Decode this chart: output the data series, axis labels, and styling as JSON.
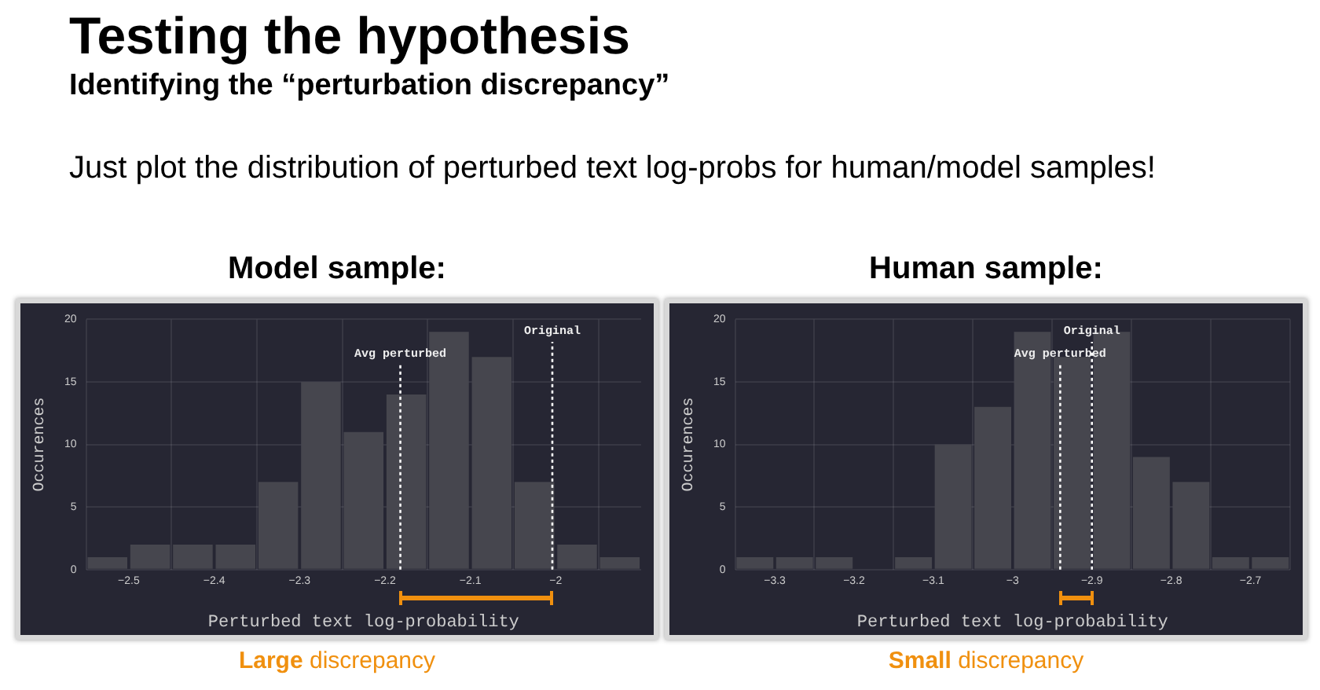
{
  "chart_data": [
    {
      "type": "other",
      "title": "Testing the hypothesis",
      "subtitle": "Identifying the “perturbation discrepancy”",
      "annotations": [
        "Just plot the distribution of perturbed text log-probs for human/model samples!"
      ]
    },
    {
      "type": "histogram",
      "title": "Model sample:",
      "xlabel": "Perturbed text log-probability",
      "ylabel": "Occurences",
      "color": "#46464e",
      "bins": [
        -2.55,
        -2.5,
        -2.45,
        -2.4,
        -2.35,
        -2.3,
        -2.25,
        -2.2,
        -2.15,
        -2.1,
        -2.05,
        -2,
        -1.95,
        -1.9
      ],
      "values": [
        1,
        2,
        2,
        2,
        7,
        15,
        11,
        14,
        19,
        17,
        7,
        2,
        1
      ],
      "xlim": [
        -2.55,
        -1.9
      ],
      "xticks": [
        {
          "value": -2.5,
          "label": "−2.5"
        },
        {
          "value": -2.4,
          "label": "−2.4"
        },
        {
          "value": -2.3,
          "label": "−2.3"
        },
        {
          "value": -2.2,
          "label": "−2.2"
        },
        {
          "value": -2.1,
          "label": "−2.1"
        },
        {
          "value": -2,
          "label": "−2"
        }
      ],
      "ylim": [
        0,
        20
      ],
      "yticks": [
        0,
        5,
        10,
        15,
        20
      ],
      "grid": true,
      "ref_lines": [
        {
          "axis": "x",
          "value": -2.182,
          "label": "Avg perturbed",
          "color": "#ffffff",
          "line_style": "dotted"
        },
        {
          "axis": "x",
          "value": -2.004,
          "label": "Original",
          "color": "#ffffff",
          "line_style": "dotted"
        }
      ],
      "annotations": [
        "Large discrepancy"
      ]
    },
    {
      "type": "histogram",
      "title": "Human sample:",
      "xlabel": "Perturbed text log-probability",
      "ylabel": "Occurences",
      "color": "#46464e",
      "bins": [
        -3.35,
        -3.3,
        -3.25,
        -3.2,
        -3.15,
        -3.1,
        -3.05,
        -3,
        -2.95,
        -2.9,
        -2.85,
        -2.8,
        -2.75,
        -2.7,
        -2.65
      ],
      "values": [
        1,
        1,
        1,
        0,
        1,
        10,
        13,
        19,
        17,
        19,
        9,
        7,
        1,
        1
      ],
      "xlim": [
        -3.35,
        -2.65
      ],
      "xticks": [
        {
          "value": -3.3,
          "label": "−3.3"
        },
        {
          "value": -3.2,
          "label": "−3.2"
        },
        {
          "value": -3.1,
          "label": "−3.1"
        },
        {
          "value": -3,
          "label": "−3"
        },
        {
          "value": -2.9,
          "label": "−2.9"
        },
        {
          "value": -2.8,
          "label": "−2.8"
        },
        {
          "value": -2.7,
          "label": "−2.7"
        }
      ],
      "ylim": [
        0,
        20
      ],
      "yticks": [
        0,
        5,
        10,
        15,
        20
      ],
      "grid": true,
      "ref_lines": [
        {
          "axis": "x",
          "value": -2.94,
          "label": "Avg perturbed",
          "color": "#ffffff",
          "line_style": "dotted"
        },
        {
          "axis": "x",
          "value": -2.9,
          "label": "Original",
          "color": "#ffffff",
          "line_style": "dotted"
        }
      ],
      "annotations": [
        "Small discrepancy"
      ]
    }
  ]
}
